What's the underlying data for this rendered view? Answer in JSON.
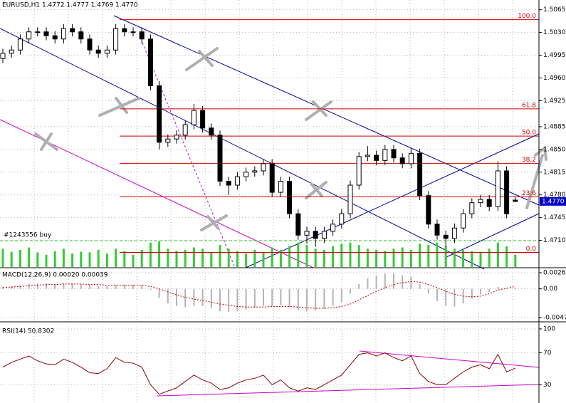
{
  "chart_data": [
    {
      "type": "candlestick",
      "title": "EURUSD,H1  1.4772 1.4777 1.4769 1.4770",
      "annotation": "#1243556 buy",
      "open": [
        1.499,
        1.4998,
        1.5003,
        1.502,
        1.5031,
        1.5031,
        1.5025,
        1.502,
        1.5036,
        1.5031,
        1.502,
        1.5003,
        1.4998,
        1.5003,
        1.5036,
        1.5031,
        1.5031,
        1.502,
        1.4948,
        1.4861,
        1.4866,
        1.4872,
        1.4888,
        1.491,
        1.4883,
        1.4872,
        1.4801,
        1.4795,
        1.4808,
        1.4815,
        1.4817,
        1.4828,
        1.4784,
        1.4801,
        1.4751,
        1.4718,
        1.4724,
        1.4713,
        1.4724,
        1.4735,
        1.4751,
        1.4795,
        1.4839,
        1.4841,
        1.4833,
        1.485,
        1.4837,
        1.4828,
        1.4844,
        1.4779,
        1.4735,
        1.4718,
        1.4713,
        1.4729,
        1.4751,
        1.4768,
        1.4773,
        1.4762,
        1.4817,
        1.4772
      ],
      "high": [
        1.5005,
        1.501,
        1.5027,
        1.5038,
        1.5038,
        1.5038,
        1.5032,
        1.5043,
        1.5043,
        1.5038,
        1.5027,
        1.501,
        1.501,
        1.5043,
        1.5043,
        1.5038,
        1.5038,
        1.5027,
        1.4955,
        1.4873,
        1.4879,
        1.4895,
        1.492,
        1.4917,
        1.489,
        1.4879,
        1.4808,
        1.4815,
        1.4822,
        1.4824,
        1.4835,
        1.4835,
        1.4808,
        1.4808,
        1.4758,
        1.4731,
        1.4731,
        1.4731,
        1.4742,
        1.4758,
        1.4802,
        1.4846,
        1.4855,
        1.4848,
        1.4857,
        1.4857,
        1.4844,
        1.4851,
        1.4851,
        1.4786,
        1.4742,
        1.4725,
        1.4736,
        1.4758,
        1.4775,
        1.478,
        1.478,
        1.4832,
        1.4824,
        1.4777
      ],
      "low": [
        1.4983,
        1.4991,
        1.4996,
        1.5013,
        1.5024,
        1.5018,
        1.5013,
        1.5013,
        1.5024,
        1.5013,
        1.4996,
        1.4991,
        1.4991,
        1.4996,
        1.5024,
        1.5024,
        1.5013,
        1.4941,
        1.485,
        1.4854,
        1.4859,
        1.4865,
        1.4881,
        1.4876,
        1.4865,
        1.4794,
        1.478,
        1.4788,
        1.4801,
        1.4808,
        1.481,
        1.4777,
        1.4777,
        1.4744,
        1.4711,
        1.4705,
        1.47,
        1.4706,
        1.4717,
        1.4728,
        1.4744,
        1.4788,
        1.4832,
        1.4826,
        1.4826,
        1.483,
        1.4821,
        1.4821,
        1.4772,
        1.4728,
        1.4711,
        1.47,
        1.4706,
        1.4722,
        1.4744,
        1.4761,
        1.4755,
        1.4755,
        1.4744,
        1.4769
      ],
      "close": [
        1.4998,
        1.5003,
        1.502,
        1.5031,
        1.5031,
        1.5025,
        1.502,
        1.5036,
        1.5031,
        1.502,
        1.5003,
        1.4998,
        1.5003,
        1.5036,
        1.5031,
        1.5031,
        1.502,
        1.4948,
        1.4861,
        1.4866,
        1.4872,
        1.4888,
        1.491,
        1.4883,
        1.4872,
        1.4801,
        1.4795,
        1.4808,
        1.4815,
        1.4817,
        1.4828,
        1.4784,
        1.4801,
        1.4751,
        1.4718,
        1.4724,
        1.4713,
        1.4724,
        1.4735,
        1.4751,
        1.4795,
        1.4839,
        1.4841,
        1.4833,
        1.485,
        1.4837,
        1.4828,
        1.4844,
        1.4779,
        1.4735,
        1.4718,
        1.4713,
        1.4729,
        1.4751,
        1.4768,
        1.4773,
        1.4762,
        1.4817,
        1.4751,
        1.477
      ],
      "volume": [
        30,
        25,
        28,
        32,
        24,
        20,
        26,
        30,
        22,
        25,
        24,
        28,
        22,
        30,
        26,
        20,
        28,
        40,
        42,
        30,
        26,
        28,
        32,
        30,
        24,
        36,
        30,
        26,
        22,
        28,
        24,
        32,
        28,
        34,
        40,
        36,
        30,
        28,
        34,
        38,
        40,
        36,
        30,
        28,
        26,
        30,
        32,
        28,
        38,
        36,
        40,
        34,
        30,
        28,
        26,
        24,
        30,
        40,
        34,
        20
      ],
      "bull_color": "#ffffff",
      "bear_color": "#000000",
      "volume_color": "#32cd32",
      "ylim": [
        1.4669,
        1.508
      ],
      "yticks": [
        1.5065,
        {
          "value": 1.503,
          "label": "1.5030"
        },
        1.4995,
        {
          "value": 1.496,
          "label": "1.4960"
        },
        1.4925,
        1.4885,
        {
          "value": 1.485,
          "label": "1.4850"
        },
        1.4815,
        {
          "value": 1.478,
          "label": "1.4780"
        },
        1.4745,
        {
          "value": 1.471,
          "label": "1.4710"
        }
      ],
      "last_price": {
        "value": 1.477,
        "label": "1.4770"
      },
      "fib_levels": [
        {
          "value": 1.50497,
          "label": "100.0"
        },
        {
          "value": 1.49124,
          "label": "61.8"
        },
        {
          "value": 1.48705,
          "label": "50.0"
        },
        {
          "value": 1.48286,
          "label": "38.2"
        },
        {
          "value": 1.4777,
          "label": "23.6"
        },
        {
          "value": 1.46914,
          "label": "0.0"
        }
      ],
      "fib_color": "#cc0000",
      "grid": true
    },
    {
      "type": "bar",
      "title": "MACD(12,26,9) 0.00020 0.00039",
      "values": [
        0.0003,
        0.0004,
        0.0006,
        0.0008,
        0.0009,
        0.0009,
        0.0008,
        0.0009,
        0.0009,
        0.0008,
        0.0006,
        0.0004,
        0.0004,
        0.0006,
        0.0007,
        0.0007,
        0.0006,
        -0.0002,
        -0.0015,
        -0.0024,
        -0.0028,
        -0.003,
        -0.0028,
        -0.0028,
        -0.0032,
        -0.0037,
        -0.0038,
        -0.0037,
        -0.0034,
        -0.0031,
        -0.0028,
        -0.0028,
        -0.0027,
        -0.003,
        -0.0035,
        -0.0037,
        -0.0036,
        -0.0033,
        -0.0028,
        -0.0022,
        -0.0008,
        0.0008,
        0.0017,
        0.0022,
        0.0025,
        0.0025,
        0.0022,
        0.002,
        0.0008,
        -0.0008,
        -0.002,
        -0.0028,
        -0.0029,
        -0.0024,
        -0.0016,
        -0.0009,
        -0.0005,
        0.0003,
        0.0001,
        0.0002
      ],
      "signal": [
        0.0002,
        0.0003,
        0.0004,
        0.0005,
        0.0006,
        0.0007,
        0.0007,
        0.0008,
        0.0008,
        0.0008,
        0.0007,
        0.0007,
        0.0006,
        0.0006,
        0.0006,
        0.0006,
        0.0006,
        0.0004,
        0.0,
        -0.0005,
        -0.001,
        -0.0014,
        -0.0017,
        -0.0019,
        -0.0022,
        -0.0025,
        -0.0027,
        -0.0029,
        -0.003,
        -0.003,
        -0.003,
        -0.0029,
        -0.0029,
        -0.0029,
        -0.003,
        -0.0031,
        -0.0032,
        -0.0032,
        -0.0031,
        -0.0029,
        -0.0025,
        -0.0018,
        -0.0011,
        -0.0004,
        0.0002,
        0.0007,
        0.001,
        0.0012,
        0.0011,
        0.0007,
        0.0002,
        -0.0004,
        -0.0009,
        -0.0012,
        -0.0013,
        -0.0012,
        -0.0008,
        -0.0002,
        0.0001,
        0.0004
      ],
      "color": "#b4b4b4",
      "signal_color": "#cc0000",
      "ylim": [
        -0.00472,
        0.00265
      ],
      "yticks": [
        0.00265,
        {
          "value": 0,
          "label": "0.00"
        },
        -0.00472
      ]
    },
    {
      "type": "line",
      "title": "RSI(14) 50.8302",
      "values": [
        52,
        58,
        62,
        66,
        60,
        56,
        55,
        62,
        58,
        52,
        45,
        44,
        50,
        64,
        58,
        57,
        52,
        30,
        18,
        22,
        26,
        34,
        42,
        36,
        32,
        24,
        26,
        32,
        36,
        38,
        42,
        30,
        36,
        26,
        22,
        26,
        24,
        30,
        36,
        42,
        55,
        68,
        70,
        66,
        70,
        64,
        60,
        66,
        44,
        34,
        30,
        30,
        38,
        46,
        52,
        55,
        50,
        68,
        46,
        50.8302
      ],
      "color": "#8b0000",
      "ylim": [
        7,
        108
      ],
      "yticks": [
        100,
        70,
        30
      ]
    }
  ]
}
